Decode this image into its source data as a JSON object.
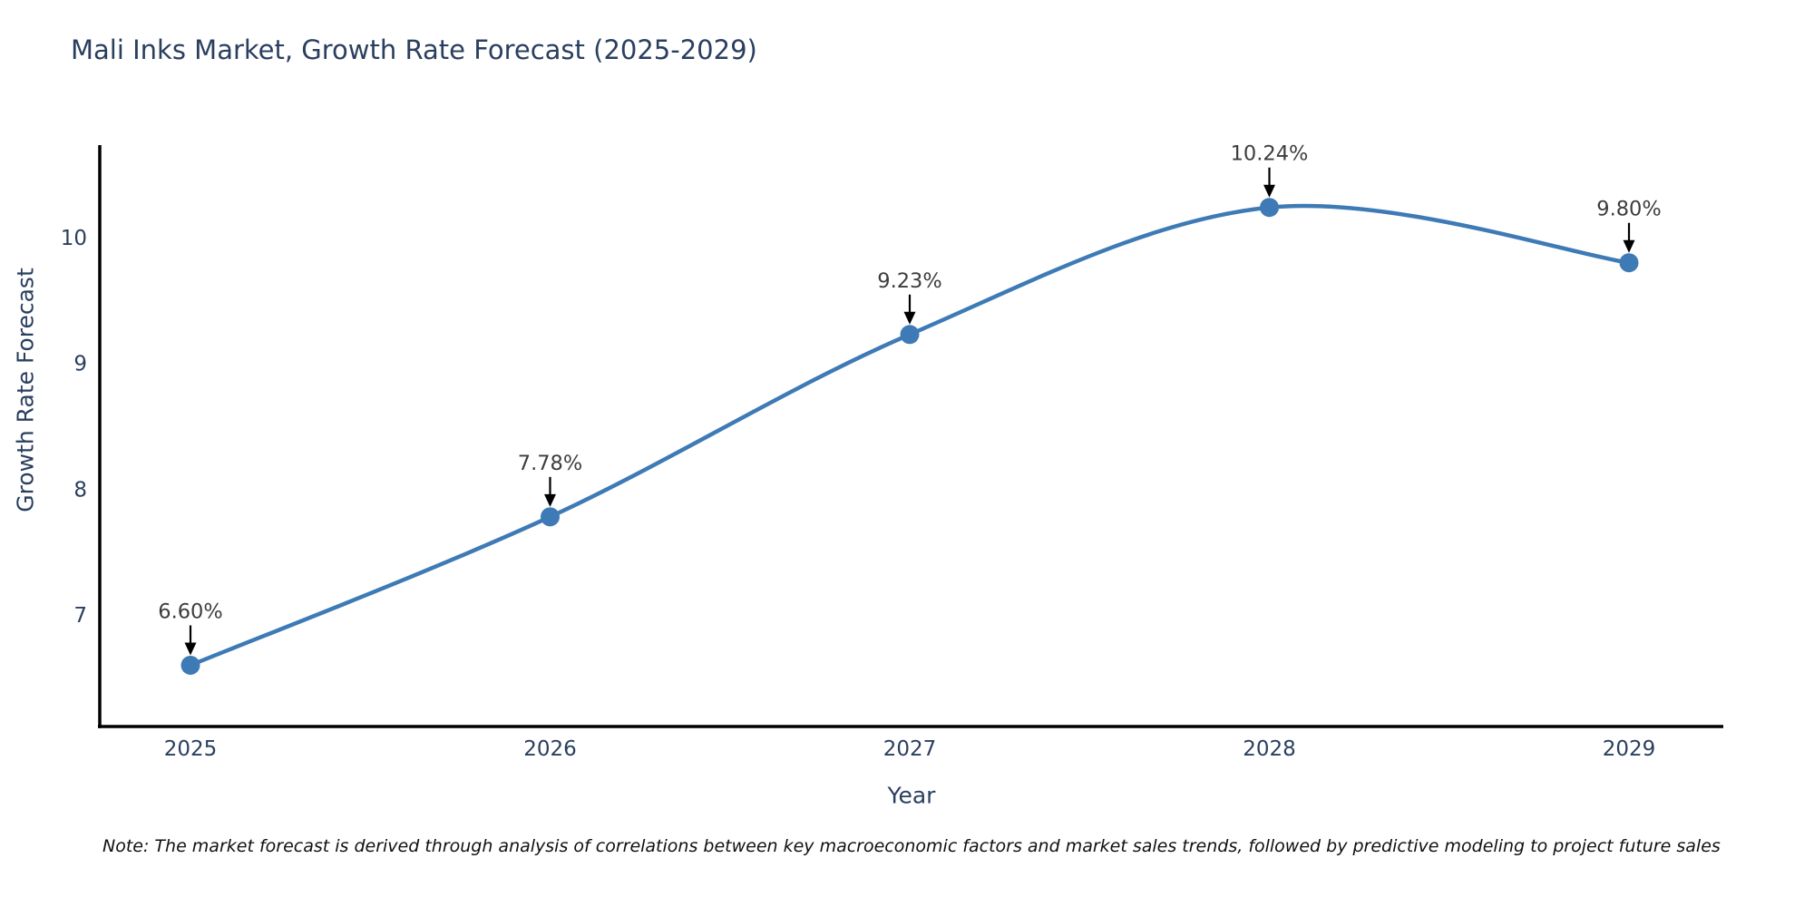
{
  "title": "Mali Inks Market, Growth Rate Forecast (2025-2029)",
  "note": "Note: The market forecast is derived through analysis of correlations between key macroeconomic factors and market sales trends, followed by predictive modeling to project future sales",
  "chart_data": {
    "type": "line",
    "title": "Mali Inks Market, Growth Rate Forecast (2025-2029)",
    "xlabel": "Year",
    "ylabel": "Growth Rate Forecast",
    "x": [
      2025,
      2026,
      2027,
      2028,
      2029
    ],
    "values": [
      6.6,
      7.78,
      9.23,
      10.24,
      9.8
    ],
    "point_labels": [
      "6.60%",
      "7.78%",
      "9.23%",
      "10.24%",
      "9.80%"
    ],
    "yticks": [
      7,
      8,
      9,
      10
    ],
    "ylim": [
      6.12,
      10.82
    ],
    "line_shape": "spline",
    "grid": false,
    "legend": "none",
    "colors": {
      "line": "#3e7ab5",
      "marker": "#3e7ab5",
      "axis": "#000000",
      "tick_text": "#2a3f5f",
      "annotation_text": "#3d3d3d",
      "annotation_arrow": "#000000",
      "title_text": "#2a3f5f",
      "background": "#ffffff"
    }
  }
}
